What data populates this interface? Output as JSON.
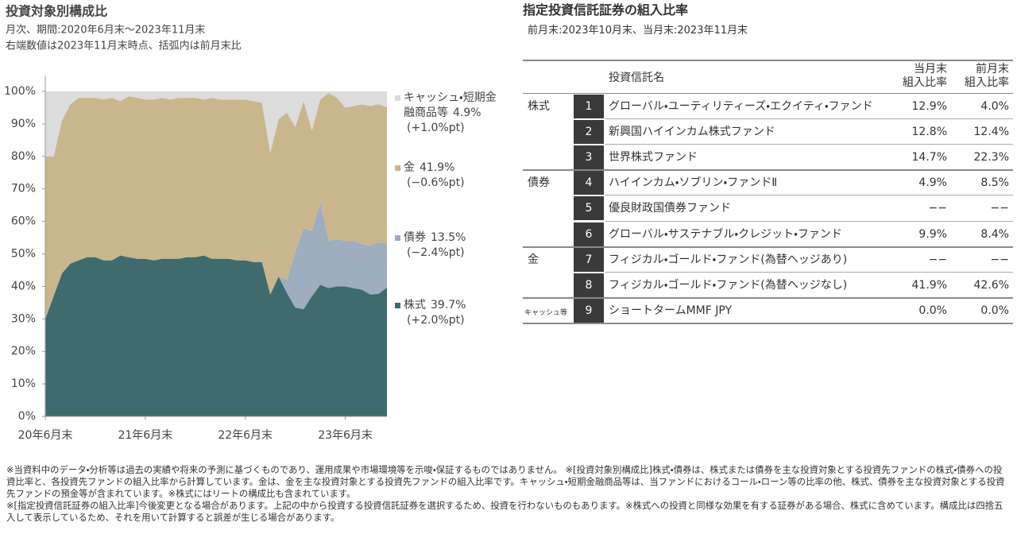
{
  "chart_data": {
    "type": "stacked_area",
    "title": "投資対象別構成比",
    "subtitle": "月次、期間:2020年6月末〜2023年11月末",
    "note": "右端数値は2023年11月末時点、括弧内は前月末比",
    "categories": [
      "20年6月末",
      null,
      null,
      null,
      null,
      null,
      null,
      null,
      null,
      null,
      null,
      null,
      "21年6月末",
      null,
      null,
      null,
      null,
      null,
      null,
      null,
      null,
      null,
      null,
      null,
      "22年6月末",
      null,
      null,
      null,
      null,
      null,
      null,
      null,
      null,
      null,
      null,
      null,
      "23年6月末",
      null,
      null,
      null,
      null,
      null
    ],
    "series": [
      {
        "name": "株式",
        "color": "#3f6b6e",
        "end_label": "39.7%",
        "change_label": "(+2.0%pt)",
        "values": [
          30,
          37,
          44,
          47,
          48,
          49,
          49,
          48,
          48,
          49.5,
          49,
          48.5,
          48.5,
          48,
          48.5,
          48.5,
          48.5,
          49,
          49,
          49.5,
          48.5,
          48.5,
          48.5,
          48,
          48,
          47.5,
          47.5,
          37.5,
          43,
          38,
          33.5,
          33,
          37,
          40.5,
          39.5,
          40,
          40,
          39.5,
          39,
          37.5,
          37.7,
          39.7
        ]
      },
      {
        "name": "債券",
        "color": "#9eadc0",
        "end_label": "13.5%",
        "change_label": "(−2.4%pt)",
        "values": [
          0,
          0,
          0,
          0,
          0,
          0,
          0,
          0,
          0,
          0,
          0,
          0,
          0,
          0,
          0,
          0,
          0,
          0,
          0,
          0,
          0,
          0,
          0,
          0,
          0,
          0,
          0,
          0,
          0,
          4,
          17,
          25,
          20,
          25.5,
          14.5,
          14.5,
          14,
          14.5,
          14,
          15,
          15.9,
          13.5
        ]
      },
      {
        "name": "金",
        "color": "#c9b68c",
        "end_label": "41.9%",
        "change_label": "(−0.6%pt)",
        "values": [
          50,
          43,
          47,
          49,
          50,
          49,
          49,
          49.5,
          50,
          47.5,
          49.5,
          49.5,
          49,
          49.5,
          49.5,
          49,
          49.5,
          49,
          49,
          48,
          49.5,
          49,
          49,
          49.5,
          49.5,
          49.5,
          49,
          43.5,
          48.5,
          51.5,
          38.5,
          39,
          31,
          31.5,
          45.5,
          43.5,
          41,
          41.5,
          43,
          43,
          42.5,
          41.9
        ]
      },
      {
        "name": "キャッシュ・短期金融商品等",
        "color": "#dcdcdc",
        "end_label": "4.9%",
        "change_label": "(+1.0%pt)",
        "values": [
          20,
          20,
          9,
          4,
          2,
          2,
          2,
          2.5,
          2,
          3,
          1.5,
          2,
          2.5,
          2.5,
          2,
          2.5,
          2,
          2,
          2,
          2.5,
          2,
          2.5,
          2.5,
          2.5,
          2.5,
          3,
          3.5,
          19,
          8.5,
          6.5,
          11,
          3,
          12,
          2.5,
          0.5,
          2,
          5,
          4.5,
          4,
          4.5,
          3.9,
          4.9
        ]
      }
    ],
    "ylim": [
      0,
      100
    ],
    "yticks": [
      {
        "value": 0,
        "label": "0%"
      },
      {
        "value": 10,
        "label": "10%"
      },
      {
        "value": 20,
        "label": "20%"
      },
      {
        "value": 30,
        "label": "30%"
      },
      {
        "value": 40,
        "label": "40%"
      },
      {
        "value": 50,
        "label": "50%"
      },
      {
        "value": 60,
        "label": "60%"
      },
      {
        "value": 70,
        "label": "70%"
      },
      {
        "value": 80,
        "label": "80%"
      },
      {
        "value": 90,
        "label": "90%"
      },
      {
        "value": 100,
        "label": "100%"
      }
    ],
    "grid": false
  },
  "table": {
    "title": "指定投資信託証券の組入比率",
    "subtitle": "前月末:2023年10月末、当月末:2023年11月末",
    "header": {
      "name": "投資信託名",
      "current": [
        "当月末",
        "組入比率"
      ],
      "previous": [
        "前月末",
        "組入比率"
      ]
    },
    "groups": [
      {
        "label": "株式",
        "rows": [
          [
            "1",
            "グローバル・ユーティリティーズ・エクイティ・ファンド",
            "12.9%",
            "4.0%"
          ],
          [
            "2",
            "新興国ハイインカム株式ファンド",
            "12.8%",
            "12.4%"
          ],
          [
            "3",
            "世界株式ファンド",
            "14.7%",
            "22.3%"
          ]
        ]
      },
      {
        "label": "債券",
        "rows": [
          [
            "4",
            "ハイインカム・ソブリン・ファンドⅡ",
            "4.9%",
            "8.5%"
          ],
          [
            "5",
            "優良財政国債券ファンド",
            "−−",
            "−−"
          ],
          [
            "6",
            "グローバル・サステナブル・クレジット・ファンド",
            "9.9%",
            "8.4%"
          ]
        ]
      },
      {
        "label": "金",
        "rows": [
          [
            "7",
            "フィジカル・ゴールド・ファンド(為替ヘッジあり)",
            "−−",
            "−−"
          ],
          [
            "8",
            "フィジカル・ゴールド・ファンド(為替ヘッジなし)",
            "41.9%",
            "42.6%"
          ]
        ]
      },
      {
        "label": "キャッシュ等",
        "rows": [
          [
            "9",
            "ショートタームMMF JPY",
            "0.0%",
            "0.0%"
          ]
        ]
      }
    ]
  },
  "footnotes": [
    "※当資料中のデータ・分析等は過去の実績や将来の予測に基づくものであり、運用成果や市場環境等を示唆・保証するものではありません。 ※[投資対象別構成比]株式・債券は、株式または債券を主な投資対象とする投資先ファンドの株式・債券への投資比率と、各投資先ファンドの組入比率から計算しています。金は、金を主な投資対象とする投資先ファンドの組入比率です。キャッシュ・短期金融商品等は、当ファンドにおけるコール・ローン等の比率の他、株式、債券を主な投資対象とする投資先ファンドの預金等が含まれています。※株式にはリートの構成比も含まれています。",
    "※[指定投資信託証券の組入比率]今後変更となる場合があります。上記の中から投資する投資信託証券を選択するため、投資を行わないものもあります。※株式への投資と同様な効果を有する証券がある場合、株式に含めています。構成比は四捨五入して表示しているため、それを用いて計算すると誤差が生じる場合があります。"
  ]
}
